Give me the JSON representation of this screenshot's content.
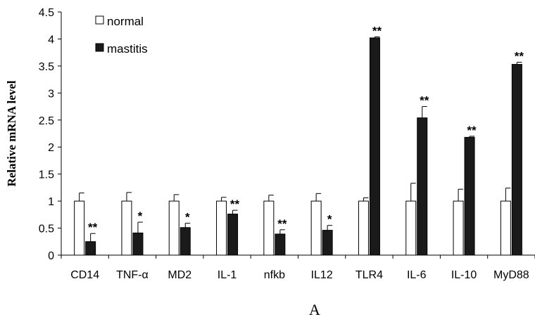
{
  "chart_data": {
    "type": "bar",
    "title": "",
    "xlabel": "",
    "ylabel": "Relative mRNA level",
    "ylim": [
      0,
      4.5
    ],
    "yticks": [
      "0",
      "0.5",
      "1",
      "1.5",
      "2",
      "2.5",
      "3",
      "3.5",
      "4",
      "4.5"
    ],
    "categories": [
      "CD14",
      "TNF-α",
      "MD2",
      "IL-1",
      "nfkb",
      "IL12",
      "TLR4",
      "IL-6",
      "IL-10",
      "MyD88"
    ],
    "series": [
      {
        "name": "normal",
        "color": "#ffffff",
        "values": [
          1.0,
          1.0,
          1.0,
          1.0,
          1.0,
          1.0,
          1.0,
          1.0,
          1.0,
          1.0
        ],
        "errors": [
          0.15,
          0.16,
          0.12,
          0.07,
          0.11,
          0.14,
          0.06,
          0.33,
          0.22,
          0.24
        ]
      },
      {
        "name": "mastitis",
        "color": "#1a1a1a",
        "values": [
          0.25,
          0.41,
          0.51,
          0.76,
          0.39,
          0.46,
          4.02,
          2.54,
          2.18,
          3.53
        ],
        "errors": [
          0.15,
          0.2,
          0.08,
          0.07,
          0.08,
          0.09,
          0.02,
          0.21,
          0.02,
          0.04
        ]
      }
    ],
    "significance": [
      "**",
      "*",
      "*",
      "**",
      "**",
      "*",
      "**",
      "**",
      "**",
      "**"
    ],
    "legend": {
      "position": "top-left"
    },
    "grid": false,
    "panel_label": "A"
  }
}
